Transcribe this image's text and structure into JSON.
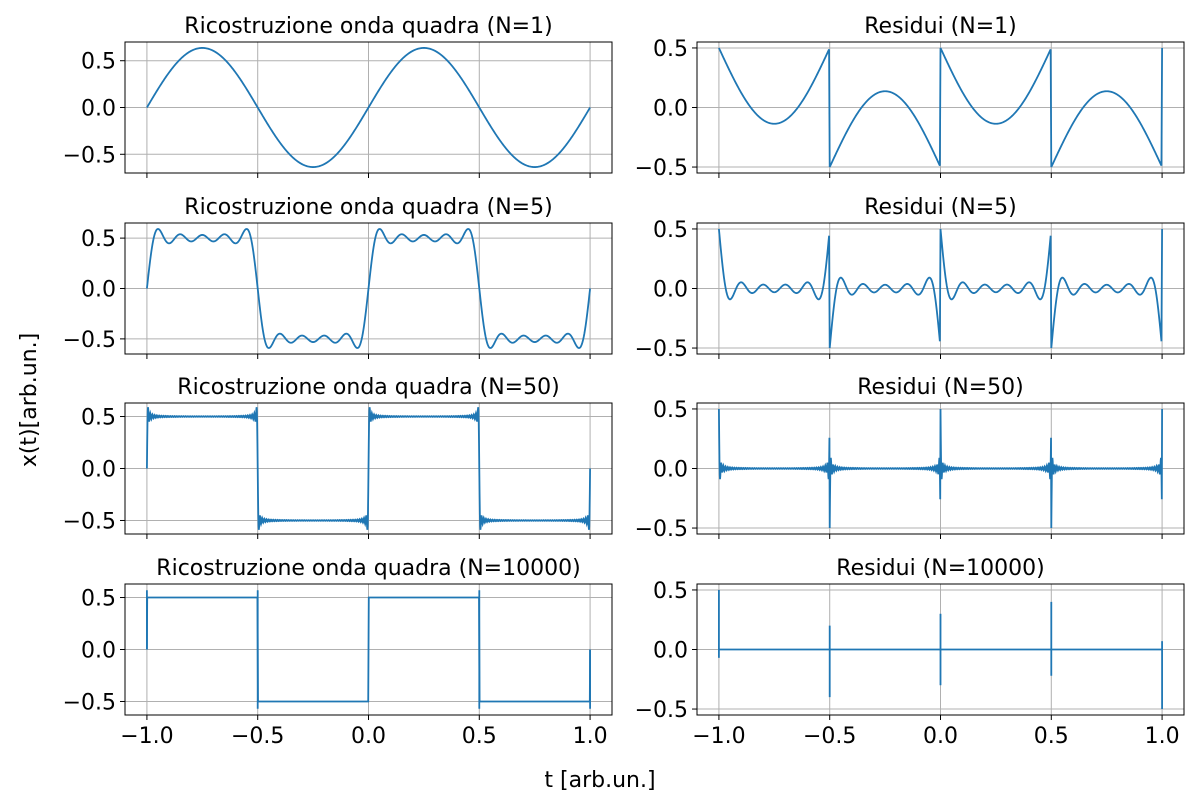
{
  "figure": {
    "ylabel": "x(t)[arb.un.]",
    "xlabel": "t  [arb.un.]"
  },
  "style": {
    "line_color": "#1f77b4",
    "grid_color": "#b0b0b0",
    "axes_color": "#000000"
  },
  "chart_data": [
    {
      "type": "line",
      "title": "Ricostruzione onda quadra (N=1)",
      "kind": "recon",
      "N": 1,
      "xlim": [
        -1.0,
        1.0
      ],
      "ylim": [
        -0.7,
        0.7
      ],
      "xticks": [
        -1.0,
        -0.5,
        0.0,
        0.5,
        1.0
      ],
      "xtick_labels": [],
      "yticks": [
        0.5,
        0.0,
        -0.5
      ],
      "ytick_labels": [
        "0.5",
        "0.0",
        "−0.5"
      ],
      "grid": true,
      "series": [
        {
          "x": [
            -1.0,
            -0.75,
            -0.5,
            -0.25,
            0.0,
            0.25,
            0.5,
            0.75,
            1.0
          ],
          "y": [
            0.0,
            0.64,
            0.0,
            -0.64,
            0.0,
            0.64,
            0.0,
            -0.64,
            0.0
          ]
        }
      ]
    },
    {
      "type": "line",
      "title": "Residui (N=1)",
      "kind": "resid",
      "N": 1,
      "xlim": [
        -1.0,
        1.0
      ],
      "ylim": [
        -0.55,
        0.55
      ],
      "xticks": [
        -1.0,
        -0.5,
        0.0,
        0.5,
        1.0
      ],
      "xtick_labels": [],
      "yticks": [
        0.5,
        0.0,
        -0.5
      ],
      "ytick_labels": [
        "0.5",
        "0.0",
        "−0.5"
      ],
      "grid": true,
      "series": [
        {
          "x": [
            -1.0,
            -0.75,
            -0.5,
            -0.25,
            0.0,
            0.25,
            0.5,
            0.75,
            1.0
          ],
          "y": [
            0.5,
            -0.14,
            0.5,
            0.14,
            0.5,
            -0.14,
            0.5,
            0.14,
            -0.5
          ]
        }
      ]
    },
    {
      "type": "line",
      "title": "Ricostruzione onda quadra (N=5)",
      "kind": "recon",
      "N": 5,
      "xlim": [
        -1.0,
        1.0
      ],
      "ylim": [
        -0.65,
        0.65
      ],
      "xticks": [
        -1.0,
        -0.5,
        0.0,
        0.5,
        1.0
      ],
      "xtick_labels": [],
      "yticks": [
        0.5,
        0.0,
        -0.5
      ],
      "ytick_labels": [
        "0.5",
        "0.0",
        "−0.5"
      ],
      "grid": true,
      "series": [
        {
          "x": [
            -1.0,
            -0.9,
            -0.75,
            -0.6,
            -0.5,
            -0.4,
            -0.25,
            -0.1,
            0.0,
            0.1,
            0.25,
            0.4,
            0.5,
            0.6,
            0.75,
            0.9,
            1.0
          ],
          "y": [
            0.0,
            0.6,
            0.55,
            0.6,
            0.0,
            -0.6,
            -0.55,
            -0.6,
            0.0,
            0.6,
            0.55,
            0.6,
            0.0,
            -0.6,
            -0.55,
            -0.6,
            0.0
          ]
        }
      ]
    },
    {
      "type": "line",
      "title": "Residui (N=5)",
      "kind": "resid",
      "N": 5,
      "xlim": [
        -1.0,
        1.0
      ],
      "ylim": [
        -0.55,
        0.55
      ],
      "xticks": [
        -1.0,
        -0.5,
        0.0,
        0.5,
        1.0
      ],
      "xtick_labels": [],
      "yticks": [
        0.5,
        0.0,
        -0.5
      ],
      "ytick_labels": [
        "0.5",
        "0.0",
        "−0.5"
      ],
      "grid": true,
      "series": [
        {
          "x": [
            -1.0,
            -0.9,
            -0.75,
            -0.6,
            -0.5,
            -0.4,
            -0.25,
            -0.1,
            0.0,
            0.1,
            0.25,
            0.4,
            0.5,
            0.6,
            0.75,
            0.9,
            1.0
          ],
          "y": [
            0.5,
            -0.1,
            -0.05,
            -0.1,
            0.5,
            0.1,
            0.05,
            0.1,
            0.5,
            -0.1,
            -0.05,
            -0.1,
            0.5,
            0.1,
            0.05,
            0.1,
            -0.5
          ]
        }
      ]
    },
    {
      "type": "line",
      "title": "Ricostruzione onda quadra (N=50)",
      "kind": "recon",
      "N": 50,
      "xlim": [
        -1.0,
        1.0
      ],
      "ylim": [
        -0.63,
        0.63
      ],
      "xticks": [
        -1.0,
        -0.5,
        0.0,
        0.5,
        1.0
      ],
      "xtick_labels": [],
      "yticks": [
        0.5,
        0.0,
        -0.5
      ],
      "ytick_labels": [
        "0.5",
        "0.0",
        "−0.5"
      ],
      "grid": true,
      "series": [
        {
          "x": [
            -1.0,
            -0.99,
            -0.75,
            -0.51,
            -0.5,
            -0.49,
            -0.25,
            -0.01,
            0.0,
            0.01,
            0.25,
            0.49,
            0.5,
            0.51,
            0.75,
            0.99,
            1.0
          ],
          "y": [
            0.0,
            0.59,
            0.5,
            0.59,
            0.0,
            -0.59,
            -0.5,
            -0.59,
            0.0,
            0.59,
            0.5,
            0.59,
            0.0,
            -0.59,
            -0.5,
            -0.59,
            0.0
          ]
        }
      ]
    },
    {
      "type": "line",
      "title": "Residui (N=50)",
      "kind": "resid",
      "N": 50,
      "xlim": [
        -1.0,
        1.0
      ],
      "ylim": [
        -0.55,
        0.55
      ],
      "xticks": [
        -1.0,
        -0.5,
        0.0,
        0.5,
        1.0
      ],
      "xtick_labels": [],
      "yticks": [
        0.5,
        0.0,
        -0.5
      ],
      "ytick_labels": [
        "0.5",
        "0.0",
        "−0.5"
      ],
      "grid": true,
      "series": [
        {
          "x": [
            -1.0,
            -0.99,
            -0.75,
            -0.5,
            -0.49,
            -0.25,
            0.0,
            0.01,
            0.25,
            0.5,
            0.51,
            0.75,
            1.0
          ],
          "y": [
            0.5,
            -0.09,
            0.0,
            0.5,
            0.09,
            0.0,
            0.5,
            -0.09,
            0.0,
            0.5,
            0.09,
            0.0,
            -0.5
          ]
        }
      ]
    },
    {
      "type": "line",
      "title": "Ricostruzione onda quadra (N=10000)",
      "kind": "recon",
      "N": 10000,
      "xlim": [
        -1.0,
        1.0
      ],
      "ylim": [
        -0.63,
        0.63
      ],
      "xticks": [
        -1.0,
        -0.5,
        0.0,
        0.5,
        1.0
      ],
      "xtick_labels": [
        "−1.0",
        "−0.5",
        "0.0",
        "0.5",
        "1.0"
      ],
      "yticks": [
        0.5,
        0.0,
        -0.5
      ],
      "ytick_labels": [
        "0.5",
        "0.0",
        "−0.5"
      ],
      "grid": true,
      "series": [
        {
          "x": [
            -1.0,
            -0.999,
            -0.75,
            -0.5,
            -0.499,
            -0.25,
            0.0,
            0.001,
            0.25,
            0.5,
            0.501,
            0.75,
            1.0
          ],
          "y": [
            0.0,
            0.5,
            0.5,
            0.0,
            -0.5,
            -0.5,
            0.0,
            0.5,
            0.5,
            0.0,
            -0.5,
            -0.5,
            0.0
          ]
        }
      ]
    },
    {
      "type": "line",
      "title": "Residui (N=10000)",
      "kind": "resid",
      "N": 10000,
      "xlim": [
        -1.0,
        1.0
      ],
      "ylim": [
        -0.55,
        0.55
      ],
      "xticks": [
        -1.0,
        -0.5,
        0.0,
        0.5,
        1.0
      ],
      "xtick_labels": [
        "−1.0",
        "−0.5",
        "0.0",
        "0.5",
        "1.0"
      ],
      "yticks": [
        0.5,
        0.0,
        -0.5
      ],
      "ytick_labels": [
        "0.5",
        "0.0",
        "−0.5"
      ],
      "grid": true,
      "series": [
        {
          "x": [
            -1.0,
            -0.5,
            0.0,
            0.5,
            1.0
          ],
          "y": [
            0.5,
            0.2,
            0.3,
            0.4,
            -0.5
          ]
        }
      ]
    }
  ]
}
